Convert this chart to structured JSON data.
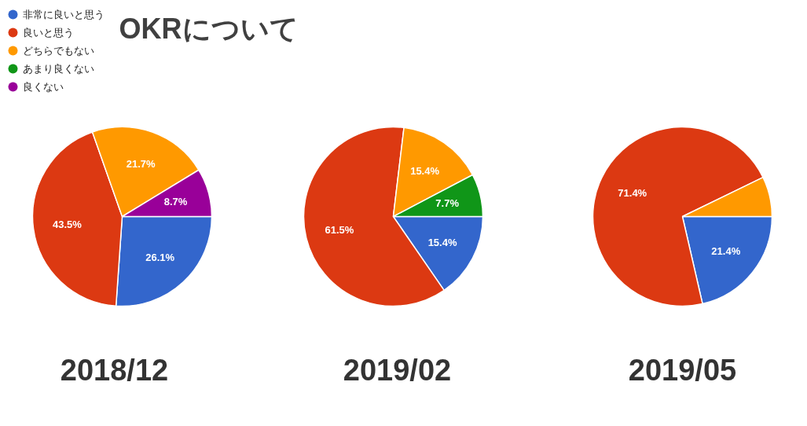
{
  "chart_data": [
    {
      "type": "pie",
      "title": "OKRについて",
      "xlabel": "2018/12",
      "legend": "top left",
      "categories": [
        "非常に良いと思う",
        "良いと思う",
        "どちらでもない",
        "あまり良くない",
        "良くない"
      ],
      "values": [
        26.1,
        43.5,
        21.7,
        0,
        8.7
      ],
      "colors": [
        "#3366cc",
        "#dc3912",
        "#ff9900",
        "#109618",
        "#990099"
      ],
      "value_labels": [
        "26.1%",
        "43.5%",
        "21.7%",
        null,
        "8.7%"
      ]
    },
    {
      "type": "pie",
      "xlabel": "2019/02",
      "values": [
        15.4,
        61.5,
        15.4,
        7.7,
        0
      ],
      "colors": [
        "#3366cc",
        "#dc3912",
        "#ff9900",
        "#109618",
        "#990099"
      ],
      "value_labels": [
        "15.4%",
        "61.5%",
        "15.4%",
        "7.7%",
        null
      ]
    },
    {
      "type": "pie",
      "xlabel": "2019/05",
      "values": [
        21.4,
        71.4,
        7.2,
        0,
        0
      ],
      "colors": [
        "#3366cc",
        "#dc3912",
        "#ff9900",
        "#109618",
        "#990099"
      ],
      "value_labels": [
        "21.4%",
        "71.4%",
        null,
        null,
        null
      ]
    }
  ]
}
